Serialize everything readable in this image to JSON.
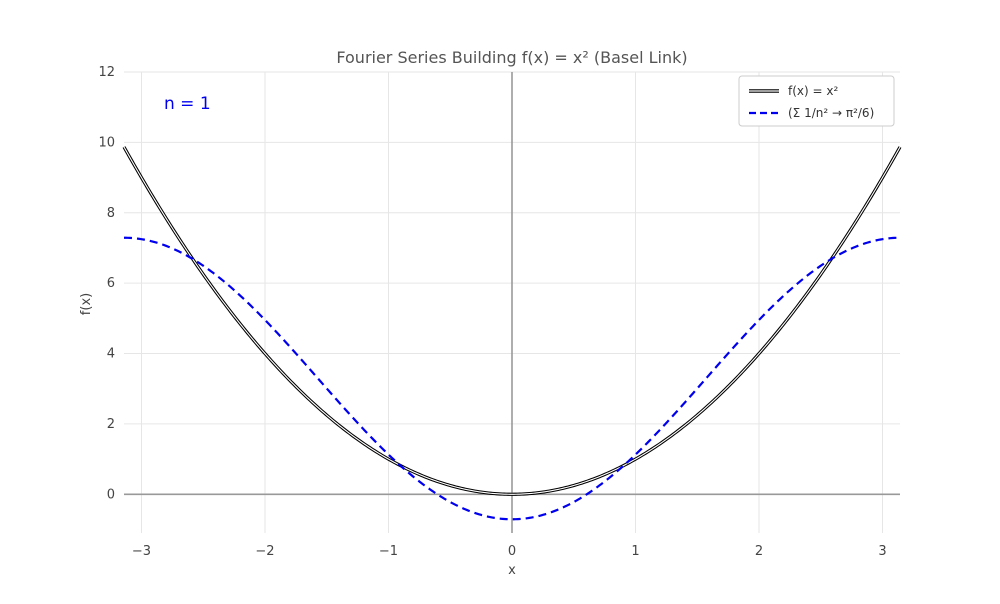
{
  "chart_data": {
    "type": "line",
    "title": "Fourier Series Building f(x) = x² (Basel Link)",
    "xlabel": "x",
    "ylabel": "f(x)",
    "xlim": [
      -3.1416,
      3.1416
    ],
    "ylim": [
      -1.1,
      12
    ],
    "xticks": [
      -3,
      -2,
      -1,
      0,
      1,
      2,
      3
    ],
    "xtick_labels": [
      "−3",
      "−2",
      "−1",
      "0",
      "1",
      "2",
      "3"
    ],
    "yticks": [
      0,
      2,
      4,
      6,
      8,
      10,
      12
    ],
    "ytick_labels": [
      "0",
      "2",
      "4",
      "6",
      "8",
      "10",
      "12"
    ],
    "grid": true,
    "legend_position": "top-right",
    "annotation": "n = 1",
    "series": [
      {
        "name": "f(x) = x²",
        "function": "x^2",
        "color": "#000000",
        "style": "solid-double"
      },
      {
        "name": "(Σ 1/n² → π²/6)",
        "function": "pi^2/3 - 4*cos(x)",
        "color": "#0000ee",
        "style": "dashed"
      }
    ],
    "sample_values": [
      {
        "x": -3.1416,
        "f": 9.87,
        "partial_sum": 7.29
      },
      {
        "x": -2.6,
        "f": 6.76,
        "partial_sum": 6.72
      },
      {
        "x": -2.0,
        "f": 4.0,
        "partial_sum": 4.95
      },
      {
        "x": -1.0,
        "f": 1.0,
        "partial_sum": 1.13
      },
      {
        "x": 0.0,
        "f": 0.0,
        "partial_sum": -0.71
      },
      {
        "x": 1.0,
        "f": 1.0,
        "partial_sum": 1.13
      },
      {
        "x": 2.0,
        "f": 4.0,
        "partial_sum": 4.95
      },
      {
        "x": 2.6,
        "f": 6.76,
        "partial_sum": 6.72
      },
      {
        "x": 3.1416,
        "f": 9.87,
        "partial_sum": 7.29
      }
    ]
  }
}
